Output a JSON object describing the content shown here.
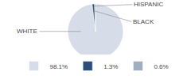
{
  "chart_data": {
    "type": "pie",
    "categories": [
      "98.1%",
      "1.3%",
      "0.6%"
    ],
    "values": [
      98.1,
      1.3,
      0.6
    ],
    "colors": [
      "#d6dde8",
      "#2d4d7a",
      "#a0afc0"
    ],
    "annotations": [
      "WHITE",
      "HISPANIC",
      "BLACK"
    ],
    "legend": "bottom"
  }
}
